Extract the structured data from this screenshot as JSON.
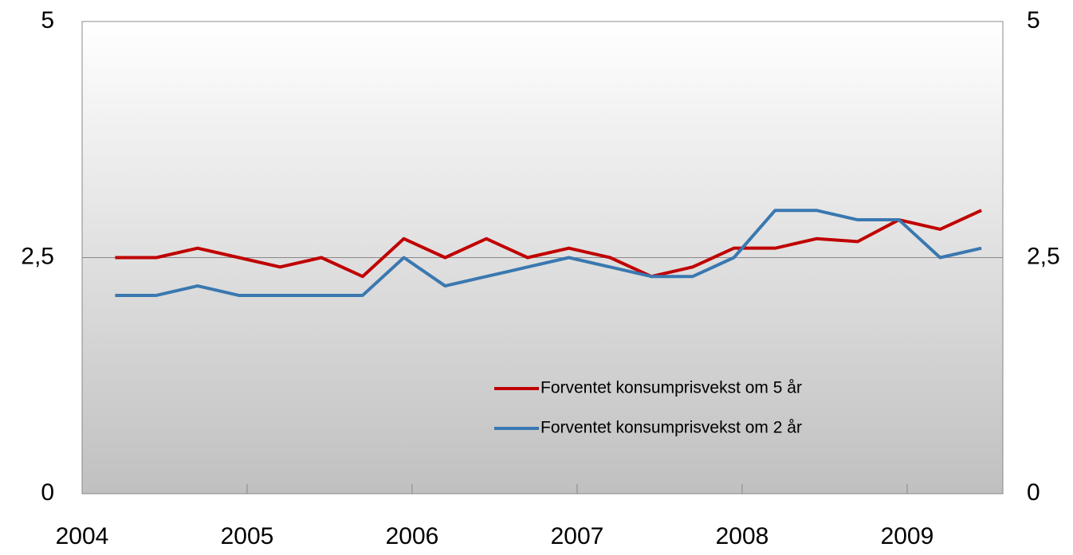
{
  "chart_data": {
    "type": "line",
    "x": [
      2004.2,
      2004.45,
      2004.7,
      2004.95,
      2005.2,
      2005.45,
      2005.7,
      2005.95,
      2006.2,
      2006.45,
      2006.7,
      2006.95,
      2007.2,
      2007.45,
      2007.7,
      2007.95,
      2008.2,
      2008.45,
      2008.7,
      2008.95,
      2009.2,
      2009.45
    ],
    "series": [
      {
        "name": "Forventet konsumprisvekst om 5 år",
        "color": "#c00000",
        "values": [
          2.5,
          2.5,
          2.6,
          2.5,
          2.4,
          2.5,
          2.3,
          2.7,
          2.5,
          2.7,
          2.5,
          2.6,
          2.5,
          2.3,
          2.4,
          2.6,
          2.6,
          2.7,
          2.67,
          2.9,
          2.8,
          3.0
        ]
      },
      {
        "name": "Forventet konsumprisvekst om 2 år",
        "color": "#3a78b0",
        "values": [
          2.1,
          2.1,
          2.2,
          2.1,
          2.1,
          2.1,
          2.1,
          2.5,
          2.2,
          2.3,
          2.4,
          2.5,
          2.4,
          2.3,
          2.3,
          2.5,
          3.0,
          3.0,
          2.9,
          2.9,
          2.5,
          2.6
        ]
      }
    ],
    "xlim": [
      2004,
      2009.58
    ],
    "xticks": [
      2004,
      2005,
      2006,
      2007,
      2008,
      2009
    ],
    "ylim": [
      0,
      5
    ],
    "yticks": [
      0,
      {
        "value": 2.5,
        "label": "2,5"
      },
      5
    ],
    "y2lim": [
      0,
      5
    ],
    "y2ticks": [
      0,
      {
        "value": 2.5,
        "label": "2,5"
      },
      5
    ],
    "grid": true,
    "legend": "lower right"
  }
}
